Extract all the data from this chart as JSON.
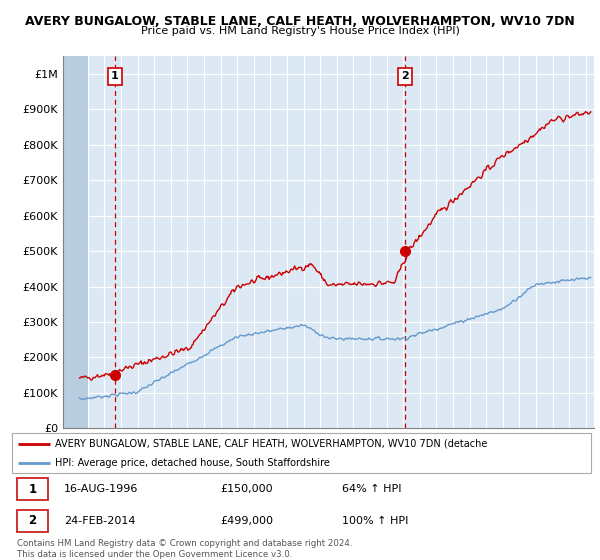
{
  "title": "AVERY BUNGALOW, STABLE LANE, CALF HEATH, WOLVERHAMPTON, WV10 7DN",
  "subtitle": "Price paid vs. HM Land Registry's House Price Index (HPI)",
  "legend_label_red": "AVERY BUNGALOW, STABLE LANE, CALF HEATH, WOLVERHAMPTON, WV10 7DN (detache",
  "legend_label_blue": "HPI: Average price, detached house, South Staffordshire",
  "footnote": "Contains HM Land Registry data © Crown copyright and database right 2024.\nThis data is licensed under the Open Government Licence v3.0.",
  "sale1_date": "16-AUG-1996",
  "sale1_price": 150000,
  "sale1_hpi": "64% ↑ HPI",
  "sale2_date": "24-FEB-2014",
  "sale2_price": 499000,
  "sale2_hpi": "100% ↑ HPI",
  "sale1_x": 1996.62,
  "sale2_x": 2014.12,
  "red_color": "#cc0000",
  "blue_color": "#6699cc",
  "dashed_color": "#cc0000",
  "chart_bg": "#dce9f5",
  "hatch_color": "#c0cfe0",
  "ylim": [
    0,
    1050000
  ],
  "xlim": [
    1993.5,
    2025.5
  ],
  "yticks": [
    0,
    100000,
    200000,
    300000,
    400000,
    500000,
    600000,
    700000,
    800000,
    900000,
    1000000
  ],
  "xticks": [
    1994,
    1995,
    1996,
    1997,
    1998,
    1999,
    2000,
    2001,
    2002,
    2003,
    2004,
    2005,
    2006,
    2007,
    2008,
    2009,
    2010,
    2011,
    2012,
    2013,
    2014,
    2015,
    2016,
    2017,
    2018,
    2019,
    2020,
    2021,
    2022,
    2023,
    2024,
    2025
  ]
}
